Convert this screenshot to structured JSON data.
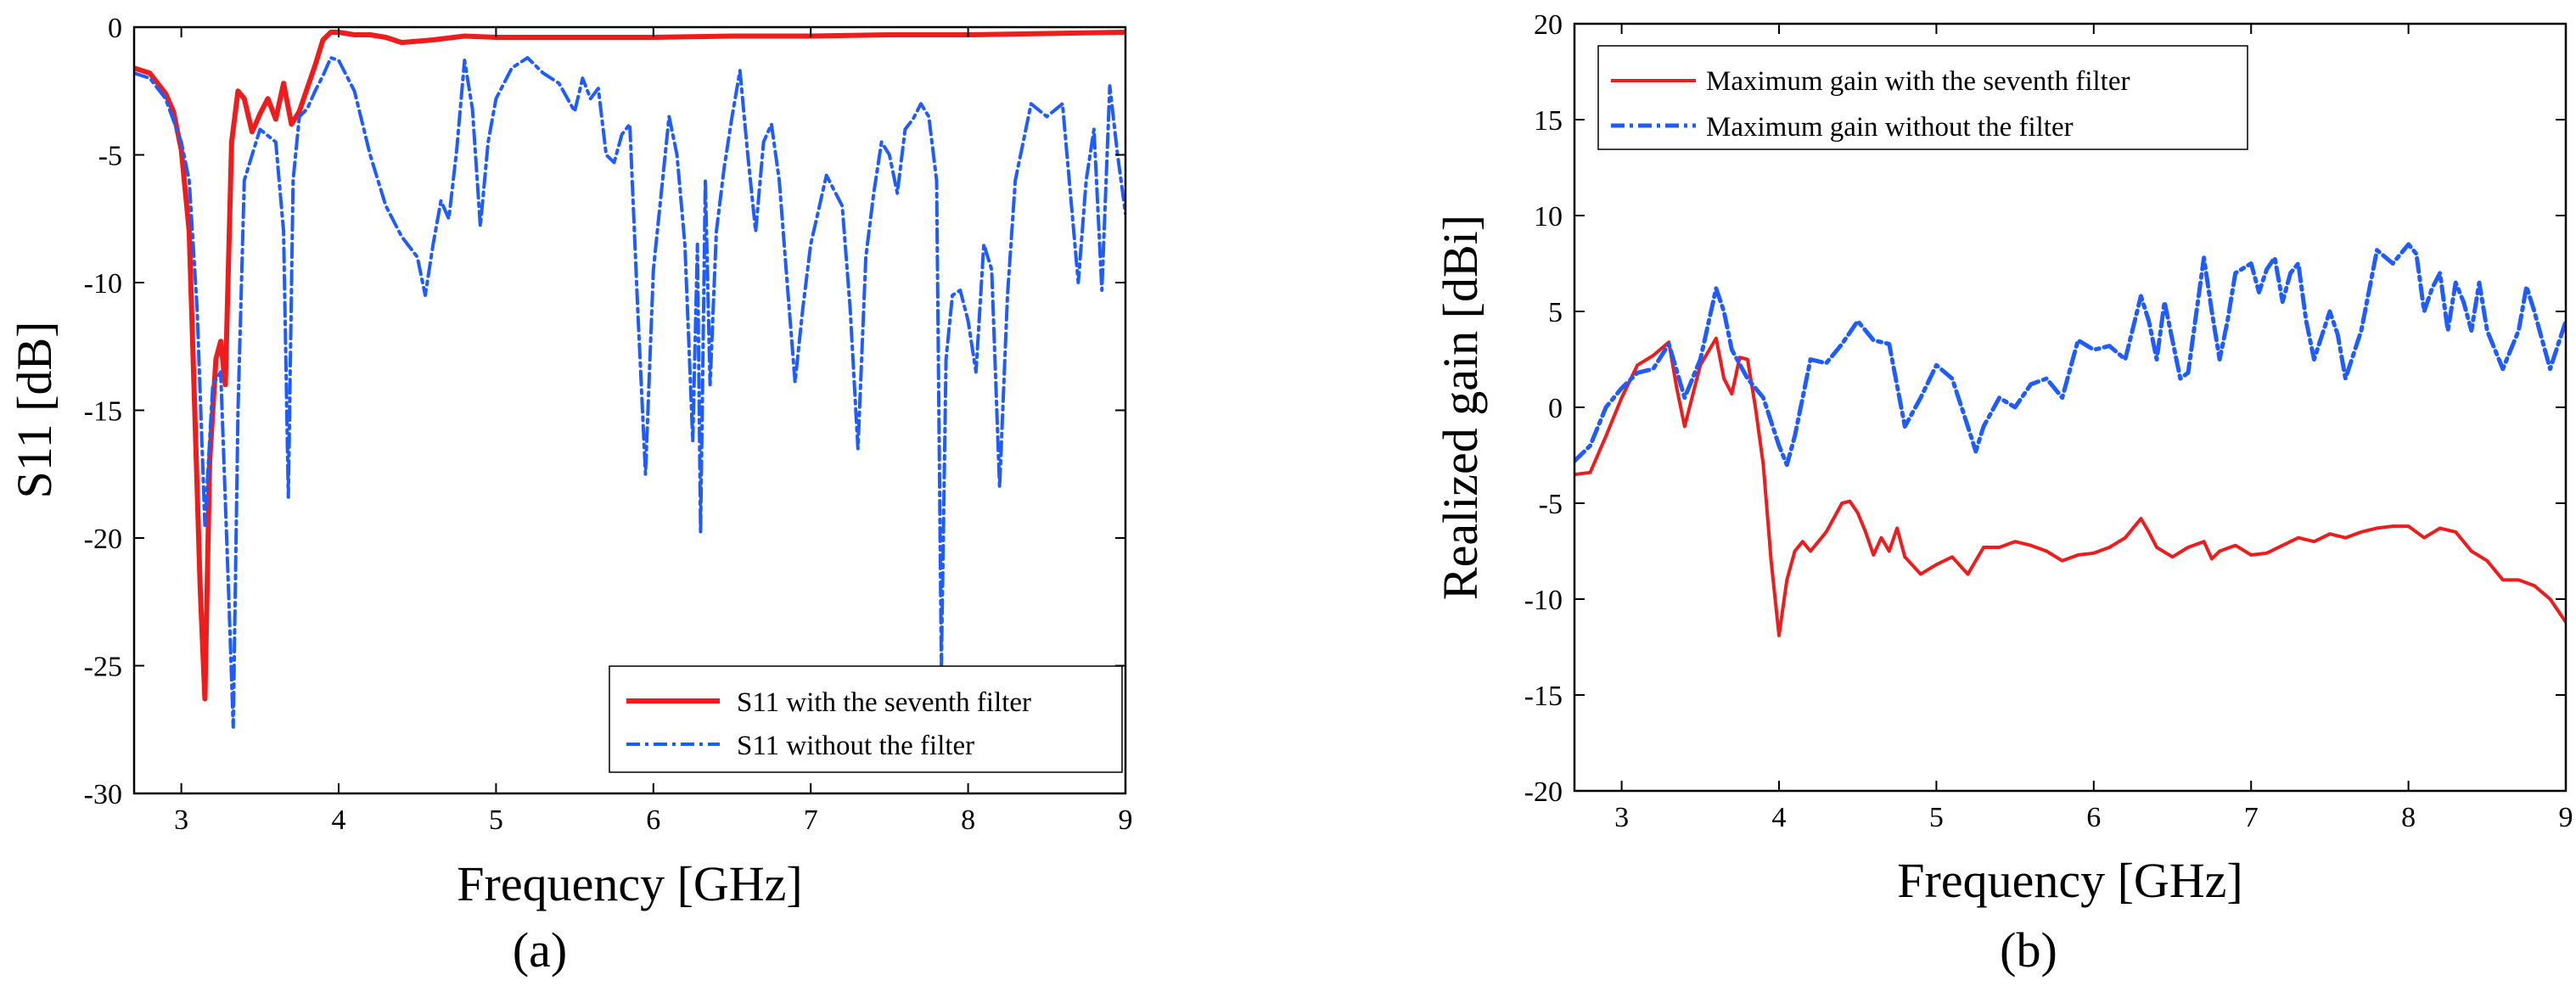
{
  "colors": {
    "red": "#ee1c1c",
    "blue": "#1f5cff",
    "axis": "#000000"
  },
  "chart_data": [
    {
      "type": "line",
      "panel_label": "(a)",
      "xlabel": "Frequency [GHz]",
      "ylabel": "S11 [dB]",
      "xlim": [
        2.7,
        9
      ],
      "ylim": [
        -30,
        0
      ],
      "xticks": [
        "3",
        "4",
        "5",
        "6",
        "7",
        "8",
        "9"
      ],
      "yticks": [
        "0",
        "-5",
        "-10",
        "-15",
        "-20",
        "-25",
        "-30"
      ],
      "legend_position": "bottom-right",
      "series": [
        {
          "name": "S11 with the seventh filter",
          "color": "red",
          "style": "solid",
          "x": [
            2.7,
            2.8,
            2.9,
            2.95,
            3.0,
            3.05,
            3.08,
            3.12,
            3.15,
            3.18,
            3.22,
            3.25,
            3.28,
            3.32,
            3.36,
            3.4,
            3.45,
            3.5,
            3.55,
            3.6,
            3.65,
            3.7,
            3.75,
            3.8,
            3.85,
            3.9,
            3.95,
            4.0,
            4.1,
            4.2,
            4.3,
            4.4,
            4.6,
            4.8,
            5.0,
            5.5,
            6.0,
            6.5,
            7.0,
            7.5,
            8.0,
            8.5,
            9.0
          ],
          "y": [
            -1.6,
            -1.8,
            -2.6,
            -3.3,
            -4.8,
            -8.0,
            -14.0,
            -22.0,
            -26.3,
            -17.0,
            -13.0,
            -12.3,
            -14.0,
            -4.5,
            -2.5,
            -2.8,
            -4.1,
            -3.4,
            -2.8,
            -3.6,
            -2.2,
            -3.8,
            -3.3,
            -2.4,
            -1.5,
            -0.5,
            -0.2,
            -0.2,
            -0.3,
            -0.3,
            -0.4,
            -0.6,
            -0.5,
            -0.35,
            -0.4,
            -0.4,
            -0.4,
            -0.35,
            -0.35,
            -0.3,
            -0.3,
            -0.25,
            -0.2
          ]
        },
        {
          "name": "S11 without the filter",
          "color": "blue",
          "style": "dashdot",
          "x": [
            2.7,
            2.8,
            2.9,
            3.0,
            3.05,
            3.1,
            3.15,
            3.2,
            3.25,
            3.3,
            3.33,
            3.36,
            3.4,
            3.5,
            3.6,
            3.65,
            3.68,
            3.71,
            3.75,
            3.8,
            3.85,
            3.9,
            3.95,
            4.0,
            4.1,
            4.2,
            4.3,
            4.4,
            4.5,
            4.55,
            4.6,
            4.65,
            4.7,
            4.75,
            4.8,
            4.85,
            4.9,
            4.95,
            5.0,
            5.1,
            5.2,
            5.3,
            5.4,
            5.5,
            5.55,
            5.6,
            5.65,
            5.7,
            5.75,
            5.8,
            5.85,
            5.9,
            5.95,
            6.0,
            6.1,
            6.15,
            6.2,
            6.25,
            6.28,
            6.3,
            6.33,
            6.36,
            6.4,
            6.45,
            6.5,
            6.55,
            6.6,
            6.65,
            6.7,
            6.75,
            6.8,
            6.85,
            6.9,
            6.95,
            7.0,
            7.1,
            7.2,
            7.25,
            7.3,
            7.35,
            7.4,
            7.45,
            7.5,
            7.55,
            7.6,
            7.65,
            7.7,
            7.75,
            7.8,
            7.83,
            7.86,
            7.9,
            7.95,
            8.0,
            8.05,
            8.1,
            8.15,
            8.2,
            8.25,
            8.3,
            8.4,
            8.5,
            8.6,
            8.7,
            8.75,
            8.8,
            8.85,
            8.9,
            8.95,
            9.0
          ],
          "y": [
            -1.8,
            -2.0,
            -2.8,
            -4.5,
            -6.0,
            -11.0,
            -19.5,
            -14.0,
            -13.5,
            -22.0,
            -27.4,
            -15.0,
            -6.0,
            -4.0,
            -4.5,
            -8.0,
            -18.4,
            -6.0,
            -3.5,
            -3.2,
            -2.5,
            -1.9,
            -1.2,
            -1.3,
            -2.5,
            -5.0,
            -7.0,
            -8.2,
            -9.0,
            -10.5,
            -8.5,
            -6.8,
            -7.5,
            -4.8,
            -1.3,
            -3.2,
            -7.8,
            -4.5,
            -2.8,
            -1.6,
            -1.2,
            -1.8,
            -2.2,
            -3.3,
            -2.0,
            -2.8,
            -2.4,
            -5.0,
            -5.3,
            -4.2,
            -3.8,
            -11.0,
            -17.5,
            -9.5,
            -3.5,
            -5.0,
            -8.5,
            -16.2,
            -8.5,
            -19.8,
            -6.0,
            -14.0,
            -8.0,
            -5.5,
            -3.5,
            -1.7,
            -5.0,
            -8.0,
            -4.5,
            -3.8,
            -6.0,
            -10.0,
            -13.9,
            -11.0,
            -8.5,
            -5.8,
            -7.0,
            -11.0,
            -16.5,
            -9.0,
            -6.5,
            -4.5,
            -5.0,
            -6.5,
            -4.0,
            -3.6,
            -3.0,
            -3.5,
            -6.0,
            -25.0,
            -13.0,
            -10.5,
            -10.3,
            -11.5,
            -13.5,
            -8.5,
            -9.5,
            -18.0,
            -10.5,
            -6.0,
            -3.0,
            -3.5,
            -3.0,
            -10.0,
            -6.0,
            -4.0,
            -10.3,
            -2.3,
            -5.0,
            -7.3
          ]
        }
      ]
    },
    {
      "type": "line",
      "panel_label": "(b)",
      "xlabel": "Frequency [GHz]",
      "ylabel": "Realized gain [dBi]",
      "xlim": [
        2.7,
        9
      ],
      "ylim": [
        -20,
        20
      ],
      "xticks": [
        "3",
        "4",
        "5",
        "6",
        "7",
        "8",
        "9"
      ],
      "yticks": [
        "20",
        "15",
        "10",
        "5",
        "0",
        "-5",
        "-10",
        "-15",
        "-20"
      ],
      "legend_position": "top-left",
      "series": [
        {
          "name": "Maximum gain with the seventh filter",
          "color": "red",
          "style": "solid",
          "x": [
            2.7,
            2.8,
            2.9,
            3.0,
            3.1,
            3.2,
            3.3,
            3.35,
            3.4,
            3.5,
            3.6,
            3.65,
            3.7,
            3.75,
            3.8,
            3.85,
            3.9,
            3.95,
            4.0,
            4.05,
            4.1,
            4.15,
            4.2,
            4.3,
            4.4,
            4.45,
            4.5,
            4.55,
            4.6,
            4.65,
            4.7,
            4.75,
            4.8,
            4.9,
            5.0,
            5.1,
            5.2,
            5.3,
            5.4,
            5.5,
            5.6,
            5.7,
            5.8,
            5.9,
            6.0,
            6.1,
            6.2,
            6.3,
            6.35,
            6.4,
            6.5,
            6.6,
            6.7,
            6.75,
            6.8,
            6.9,
            7.0,
            7.1,
            7.2,
            7.3,
            7.4,
            7.5,
            7.6,
            7.7,
            7.8,
            7.9,
            8.0,
            8.1,
            8.2,
            8.3,
            8.4,
            8.5,
            8.6,
            8.7,
            8.8,
            8.9,
            9.0
          ],
          "y": [
            -3.5,
            -3.4,
            -1.5,
            0.5,
            2.2,
            2.7,
            3.4,
            1.0,
            -1.0,
            2.2,
            3.6,
            1.5,
            0.7,
            2.6,
            2.5,
            0.0,
            -3.0,
            -8.0,
            -11.9,
            -9.0,
            -7.5,
            -7.0,
            -7.5,
            -6.5,
            -5.0,
            -4.9,
            -5.5,
            -6.5,
            -7.7,
            -6.8,
            -7.5,
            -6.3,
            -7.8,
            -8.7,
            -8.2,
            -7.8,
            -8.7,
            -7.3,
            -7.3,
            -7.0,
            -7.2,
            -7.5,
            -8.0,
            -7.7,
            -7.6,
            -7.3,
            -6.8,
            -5.8,
            -6.5,
            -7.3,
            -7.8,
            -7.3,
            -7.0,
            -7.9,
            -7.5,
            -7.2,
            -7.7,
            -7.6,
            -7.2,
            -6.8,
            -7.0,
            -6.6,
            -6.8,
            -6.5,
            -6.3,
            -6.2,
            -6.2,
            -6.8,
            -6.3,
            -6.5,
            -7.5,
            -8.0,
            -9.0,
            -9.0,
            -9.3,
            -10.0,
            -11.2
          ]
        },
        {
          "name": "Maximum gain without the filter",
          "color": "blue",
          "style": "dashdot",
          "x": [
            2.7,
            2.8,
            2.9,
            3.0,
            3.1,
            3.2,
            3.3,
            3.4,
            3.5,
            3.6,
            3.65,
            3.7,
            3.8,
            3.9,
            4.0,
            4.05,
            4.1,
            4.2,
            4.3,
            4.4,
            4.5,
            4.6,
            4.7,
            4.8,
            4.9,
            5.0,
            5.1,
            5.2,
            5.25,
            5.3,
            5.4,
            5.5,
            5.6,
            5.7,
            5.8,
            5.9,
            6.0,
            6.1,
            6.2,
            6.3,
            6.35,
            6.4,
            6.45,
            6.5,
            6.55,
            6.6,
            6.7,
            6.75,
            6.8,
            6.85,
            6.9,
            7.0,
            7.05,
            7.1,
            7.15,
            7.2,
            7.25,
            7.3,
            7.35,
            7.4,
            7.5,
            7.55,
            7.6,
            7.7,
            7.8,
            7.9,
            8.0,
            8.05,
            8.1,
            8.15,
            8.2,
            8.25,
            8.3,
            8.35,
            8.4,
            8.45,
            8.5,
            8.6,
            8.7,
            8.75,
            8.8,
            8.9,
            9.0
          ],
          "y": [
            -2.8,
            -2.0,
            0.0,
            1.0,
            1.8,
            2.0,
            3.3,
            0.5,
            2.5,
            6.2,
            5.0,
            3.0,
            1.5,
            0.5,
            -2.0,
            -3.0,
            -1.5,
            2.5,
            2.3,
            3.3,
            4.5,
            3.5,
            3.3,
            -1.0,
            0.5,
            2.2,
            1.5,
            -1.0,
            -2.3,
            -1.0,
            0.5,
            0.0,
            1.2,
            1.5,
            0.5,
            3.5,
            3.0,
            3.2,
            2.5,
            5.8,
            4.5,
            2.5,
            5.5,
            3.5,
            1.5,
            1.8,
            7.8,
            5.0,
            2.5,
            4.5,
            7.0,
            7.5,
            6.0,
            7.2,
            7.8,
            5.5,
            7.0,
            7.5,
            4.5,
            2.5,
            5.0,
            3.8,
            1.5,
            4.0,
            8.2,
            7.5,
            8.5,
            8.0,
            5.0,
            6.2,
            7.0,
            4.0,
            6.5,
            5.5,
            4.0,
            6.5,
            4.0,
            2.0,
            4.0,
            6.3,
            5.0,
            2.0,
            4.5
          ]
        }
      ]
    }
  ]
}
